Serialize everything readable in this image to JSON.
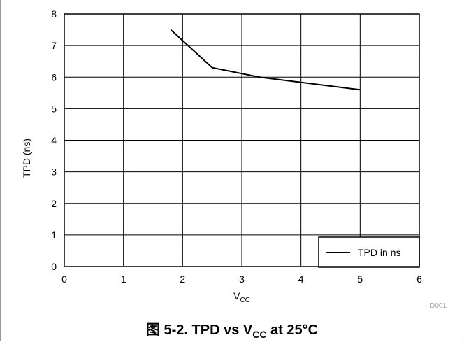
{
  "chart_data": {
    "type": "line",
    "title": "",
    "xlabel_main": "V",
    "xlabel_sub": "CC",
    "ylabel": "TPD (ns)",
    "xlim": [
      0,
      6
    ],
    "ylim": [
      0,
      8
    ],
    "x_ticks": [
      "0",
      "1",
      "2",
      "3",
      "4",
      "5",
      "6"
    ],
    "y_ticks": [
      "0",
      "1",
      "2",
      "3",
      "4",
      "5",
      "6",
      "7",
      "8"
    ],
    "grid": true,
    "legend_position": "bottom-right",
    "series": [
      {
        "name": "TPD in ns",
        "color": "#000000",
        "x": [
          1.8,
          2.5,
          3.3,
          5.0
        ],
        "y": [
          7.5,
          6.3,
          6.0,
          5.6
        ]
      }
    ]
  },
  "figure_id": "D001",
  "caption": {
    "prefix": "图 5-2. TPD vs V",
    "sub": "CC",
    "suffix": " at 25°C"
  }
}
